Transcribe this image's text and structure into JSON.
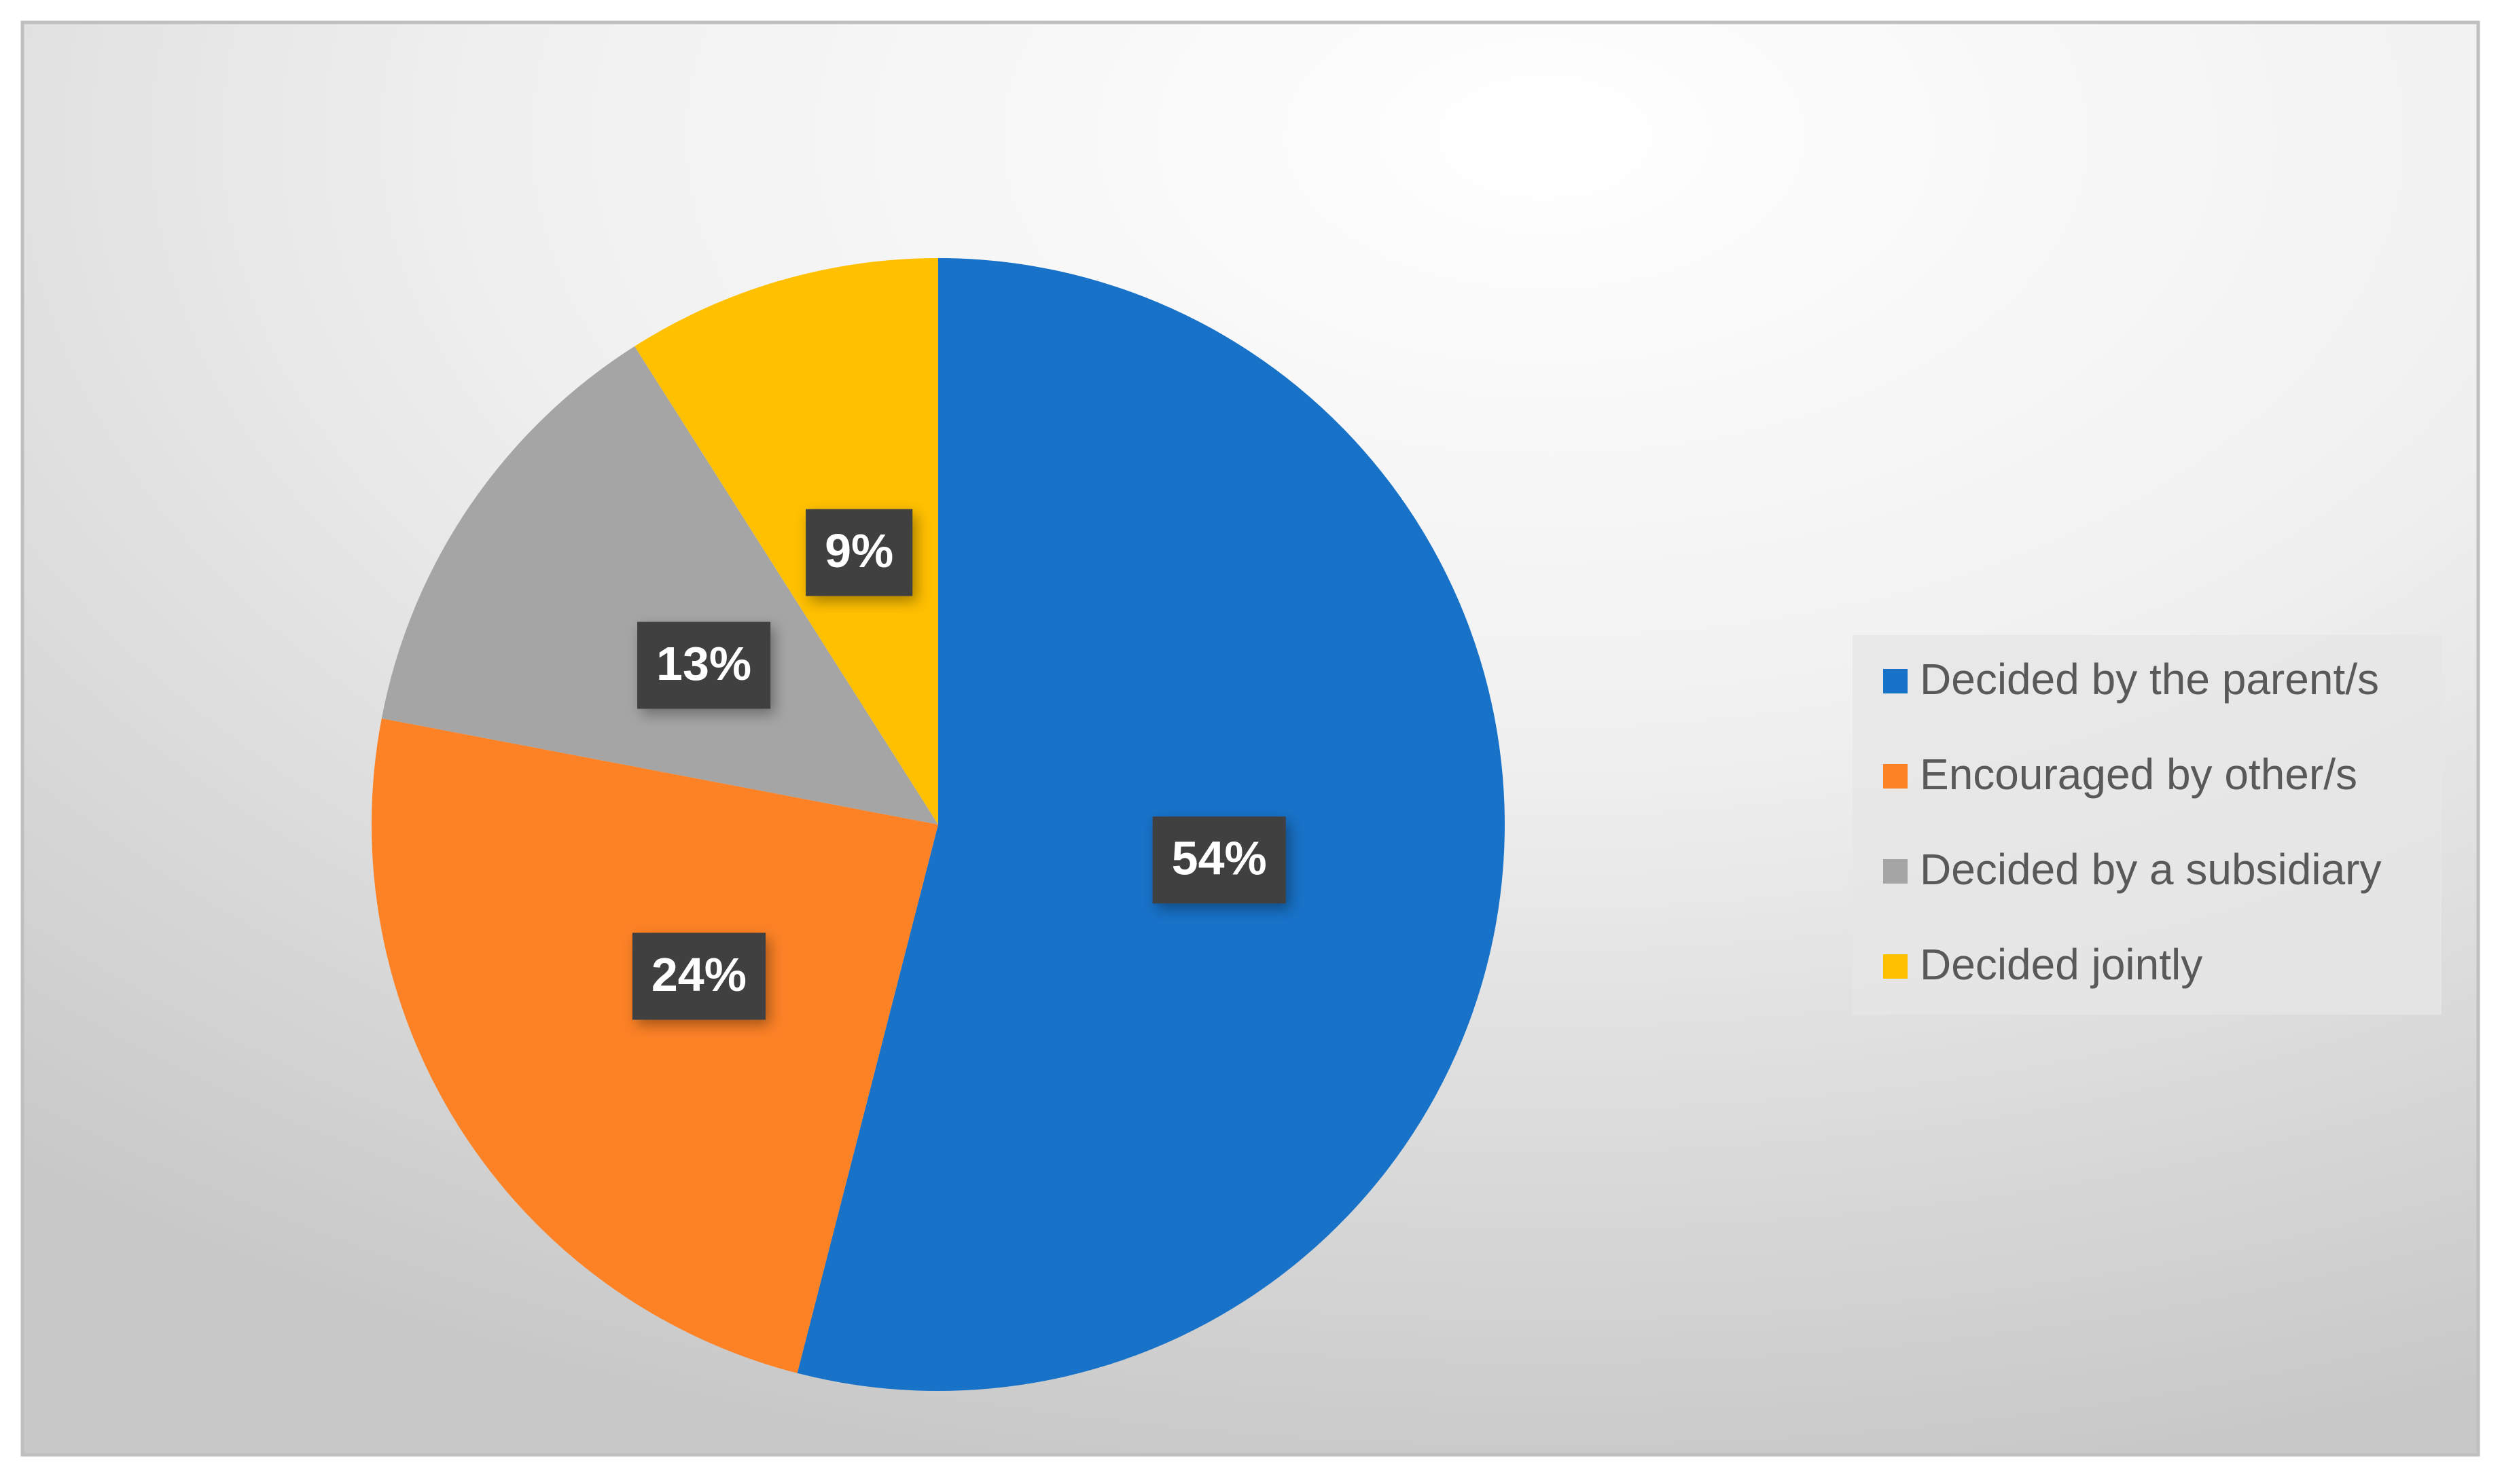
{
  "chart_data": {
    "type": "pie",
    "categories": [
      "Decided by the parent/s",
      "Encouraged by other/s",
      "Decided by a subsidiary",
      "Decided jointly"
    ],
    "values": [
      54,
      24,
      13,
      9
    ],
    "value_labels": [
      "54%",
      "24%",
      "13%",
      "9%"
    ],
    "colors": [
      "#1872c8",
      "#fd8226",
      "#a5a5a5",
      "#ffc000"
    ],
    "legend": "right"
  }
}
